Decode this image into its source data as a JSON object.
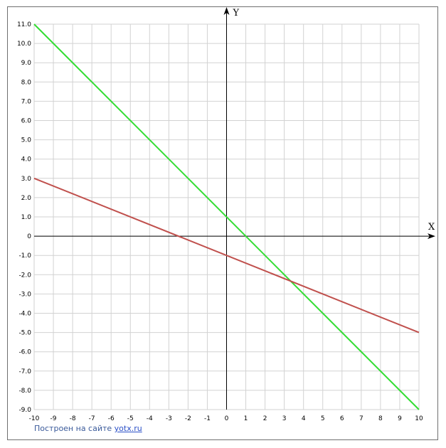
{
  "credit": {
    "prefix": "Построен на сайте",
    "link": "yotx.ru"
  },
  "chart_data": {
    "type": "line",
    "xlabel": "X",
    "ylabel": "Y",
    "xlim": [
      -10,
      10
    ],
    "ylim": [
      -9,
      11
    ],
    "grid": true,
    "x_ticks": [
      "-10",
      "-9",
      "-8",
      "-7",
      "-6",
      "-5",
      "-4",
      "-3",
      "-2",
      "-1",
      "0",
      "1",
      "2",
      "3",
      "4",
      "5",
      "6",
      "7",
      "8",
      "9",
      "10"
    ],
    "y_ticks": [
      "11.0",
      "10.0",
      "9.0",
      "8.0",
      "7.0",
      "6.0",
      "5.0",
      "4.0",
      "3.0",
      "2.0",
      "1.0",
      "0",
      "-1.0",
      "-2.0",
      "-3.0",
      "-4.0",
      "-5.0",
      "-6.0",
      "-7.0",
      "-8.0",
      "-9.0"
    ],
    "series": [
      {
        "color": "#33dd33",
        "x": [
          -10,
          10
        ],
        "y": [
          11,
          -9
        ]
      },
      {
        "color": "#c0504d",
        "x": [
          -10,
          10
        ],
        "y": [
          3,
          -5
        ]
      }
    ]
  }
}
